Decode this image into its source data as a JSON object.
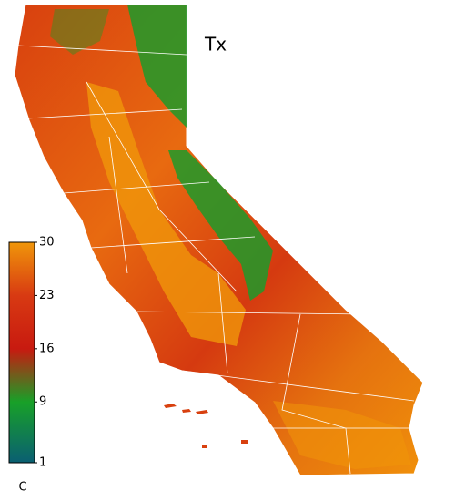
{
  "map": {
    "title": "Tx",
    "colorbar": {
      "ticks": [
        30,
        23,
        16,
        9,
        1
      ],
      "colors": [
        "#f0960a",
        "#d83a12",
        "#c81a10",
        "#18a028",
        "#0a5f72"
      ],
      "unit": "C"
    }
  }
}
